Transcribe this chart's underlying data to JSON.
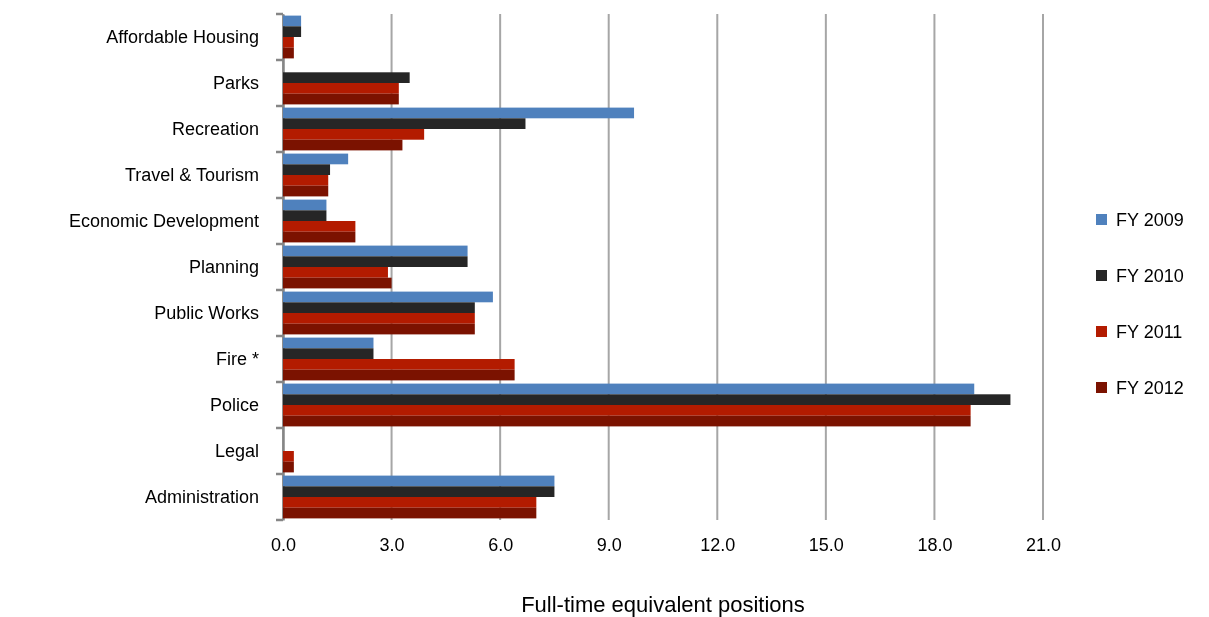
{
  "chart_data": {
    "type": "bar",
    "orientation": "horizontal",
    "xlabel": "Full-time equivalent positions",
    "categories": [
      "Affordable Housing",
      "Parks",
      "Recreation",
      "Travel & Tourism",
      "Economic Development",
      "Planning",
      "Public Works",
      "Fire *",
      "Police",
      "Legal",
      "Administration"
    ],
    "series": [
      {
        "name": "FY 2009",
        "color": "#4f81bd",
        "values": [
          0.5,
          null,
          9.7,
          1.8,
          1.2,
          5.1,
          5.8,
          2.5,
          19.1,
          null,
          7.5
        ]
      },
      {
        "name": "FY 2010",
        "color": "#262626",
        "values": [
          0.5,
          3.5,
          6.7,
          1.3,
          1.2,
          5.1,
          5.3,
          2.5,
          20.1,
          null,
          7.5
        ]
      },
      {
        "name": "FY 2011",
        "color": "#b31b00",
        "values": [
          0.3,
          3.2,
          3.9,
          1.25,
          2.0,
          2.9,
          5.3,
          6.4,
          19.0,
          0.3,
          7.0
        ]
      },
      {
        "name": "FY 2012",
        "color": "#7b1200",
        "values": [
          0.3,
          3.2,
          3.3,
          1.25,
          2.0,
          3.0,
          5.3,
          6.4,
          19.0,
          0.3,
          7.0
        ]
      }
    ],
    "xlim": [
      0,
      21
    ],
    "xticks": [
      {
        "value": 0,
        "label": "0.0"
      },
      {
        "value": 3,
        "label": "3.0"
      },
      {
        "value": 6,
        "label": "6.0"
      },
      {
        "value": 9,
        "label": "9.0"
      },
      {
        "value": 12,
        "label": "12.0"
      },
      {
        "value": 15,
        "label": "15.0"
      },
      {
        "value": 18,
        "label": "18.0"
      },
      {
        "value": 21,
        "label": "21.0"
      }
    ],
    "grid": "x",
    "legend": "right"
  }
}
